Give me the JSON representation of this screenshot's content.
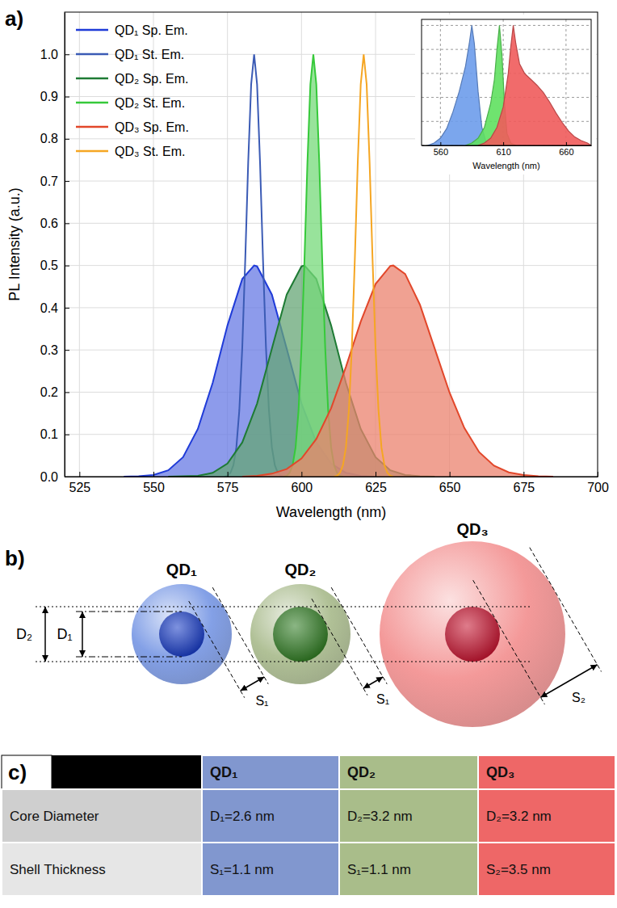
{
  "chart_data": [
    {
      "type": "line",
      "panel_label": "a)",
      "xlabel": "Wavelength (nm)",
      "ylabel": "PL Intensity (a.u.)",
      "xlim": [
        520,
        700
      ],
      "xticks": [
        525,
        550,
        575,
        600,
        625,
        650,
        675,
        700
      ],
      "ylim": [
        0,
        1.1
      ],
      "yticks": [
        {
          "value": 0,
          "label": "0.0"
        },
        {
          "value": 0.1,
          "label": "0.1"
        },
        {
          "value": 0.2,
          "label": "0.2"
        },
        {
          "value": 0.3,
          "label": "0.3"
        },
        {
          "value": 0.4,
          "label": "0.4"
        },
        {
          "value": 0.5,
          "label": "0.5"
        },
        {
          "value": 0.6,
          "label": "0.6"
        },
        {
          "value": 0.7,
          "label": "0.7"
        },
        {
          "value": 0.8,
          "label": "0.8"
        },
        {
          "value": 0.9,
          "label": "0.9"
        },
        {
          "value": 1,
          "label": "1.0"
        }
      ],
      "grid": true,
      "legend": "upper left",
      "series": [
        {
          "name": "QD₁ Sp. Em.",
          "color": "#1f3bd8",
          "type": "area",
          "x": [
            540,
            545,
            550,
            555,
            560,
            565,
            570,
            575,
            580,
            584,
            585,
            590,
            595,
            600,
            605,
            610,
            615,
            620,
            625
          ],
          "values": [
            0,
            0.001,
            0.004,
            0.015,
            0.046,
            0.113,
            0.222,
            0.358,
            0.468,
            0.5,
            0.498,
            0.431,
            0.303,
            0.173,
            0.081,
            0.031,
            0.009,
            0.002,
            0
          ]
        },
        {
          "name": "QD₁ St. Em.",
          "color": "#3b5bb5",
          "type": "line",
          "x": [
            574,
            575,
            576,
            577,
            578,
            579,
            580,
            581,
            582,
            583,
            584,
            585,
            586,
            587,
            588,
            589,
            590,
            591,
            592,
            593,
            594
          ],
          "values": [
            0,
            0.002,
            0.009,
            0.027,
            0.069,
            0.157,
            0.306,
            0.513,
            0.744,
            0.929,
            1,
            0.929,
            0.744,
            0.513,
            0.306,
            0.157,
            0.069,
            0.027,
            0.009,
            0.002,
            0
          ]
        },
        {
          "name": "QD₂ Sp. Em.",
          "color": "#1e7b34",
          "type": "area",
          "x": [
            555,
            560,
            565,
            570,
            575,
            580,
            585,
            590,
            595,
            600,
            601,
            605,
            610,
            615,
            620,
            625,
            630,
            635,
            640,
            645
          ],
          "values": [
            0,
            0.001,
            0.002,
            0.009,
            0.031,
            0.081,
            0.173,
            0.303,
            0.431,
            0.498,
            0.5,
            0.468,
            0.358,
            0.222,
            0.113,
            0.046,
            0.015,
            0.004,
            0.001,
            0
          ]
        },
        {
          "name": "QD₂ St. Em.",
          "color": "#36c93a",
          "type": "area",
          "x": [
            594,
            595,
            596,
            597,
            598,
            599,
            600,
            601,
            602,
            603,
            604,
            605,
            606,
            607,
            608,
            609,
            610,
            611,
            612,
            613,
            614
          ],
          "values": [
            0,
            0.002,
            0.009,
            0.027,
            0.069,
            0.157,
            0.306,
            0.513,
            0.744,
            0.929,
            1,
            0.929,
            0.744,
            0.513,
            0.306,
            0.157,
            0.069,
            0.027,
            0.009,
            0.002,
            0
          ]
        },
        {
          "name": "QD₃ Sp. Em.",
          "color": "#e2472a",
          "type": "area",
          "x": [
            580,
            585,
            590,
            595,
            600,
            605,
            610,
            615,
            620,
            625,
            630,
            631,
            635,
            640,
            645,
            650,
            655,
            660,
            665,
            670,
            675,
            680,
            685
          ],
          "values": [
            0,
            0.002,
            0.007,
            0.018,
            0.043,
            0.089,
            0.162,
            0.26,
            0.367,
            0.456,
            0.499,
            0.5,
            0.48,
            0.407,
            0.303,
            0.199,
            0.115,
            0.058,
            0.026,
            0.01,
            0.004,
            0.001,
            0
          ]
        },
        {
          "name": "QD₃ St. Em.",
          "color": "#f5a623",
          "type": "line",
          "x": [
            611,
            612,
            613,
            614,
            615,
            616,
            617,
            618,
            619,
            620,
            621,
            622,
            623,
            624,
            625,
            626,
            627,
            628,
            629,
            630,
            631
          ],
          "values": [
            0,
            0.002,
            0.009,
            0.027,
            0.069,
            0.157,
            0.306,
            0.513,
            0.744,
            0.929,
            1,
            0.929,
            0.744,
            0.513,
            0.306,
            0.157,
            0.069,
            0.027,
            0.009,
            0.002,
            0
          ]
        }
      ]
    },
    {
      "type": "line",
      "xlabel": "Wavelength (nm)",
      "xlim": [
        545,
        680
      ],
      "xticks": [
        560,
        610,
        660
      ],
      "ylim": [
        0,
        1.05
      ],
      "yticks": [
        0,
        0.2,
        0.4,
        0.6,
        0.8,
        1
      ],
      "grid": true,
      "tick_labels": "x",
      "series": [
        {
          "color": "#6d9ceb",
          "type": "area",
          "x": [
            550,
            555,
            560,
            565,
            570,
            575,
            580,
            583,
            585,
            587,
            590,
            593,
            596,
            600
          ],
          "values": [
            0,
            0.02,
            0.06,
            0.14,
            0.28,
            0.45,
            0.66,
            0.85,
            1,
            0.85,
            0.45,
            0.15,
            0.04,
            0
          ]
        },
        {
          "color": "#5fe05f",
          "type": "area",
          "x": [
            580,
            585,
            590,
            595,
            600,
            603,
            605,
            607,
            609,
            611,
            613,
            616,
            620
          ],
          "values": [
            0,
            0.02,
            0.06,
            0.15,
            0.35,
            0.55,
            0.8,
            1,
            0.75,
            0.35,
            0.1,
            0.02,
            0
          ]
        },
        {
          "color": "#ef5b5b",
          "type": "area",
          "x": [
            590,
            595,
            600,
            605,
            610,
            614,
            616,
            618,
            620,
            623,
            627,
            632,
            637,
            642,
            647,
            652,
            657,
            662,
            667,
            672,
            677,
            680
          ],
          "values": [
            0,
            0.02,
            0.06,
            0.15,
            0.32,
            0.6,
            0.82,
            1,
            0.85,
            0.68,
            0.6,
            0.55,
            0.5,
            0.44,
            0.36,
            0.27,
            0.19,
            0.12,
            0.07,
            0.04,
            0.02,
            0
          ]
        }
      ]
    }
  ],
  "diagram": {
    "panel_label": "b)",
    "dimension_labels": {
      "outer": "D₂",
      "inner": "D₁"
    },
    "spheres": [
      {
        "label": "QD₁",
        "shell": "S₁"
      },
      {
        "label": "QD₂",
        "shell": "S₁"
      },
      {
        "label": "QD₃",
        "shell": "S₂"
      }
    ]
  },
  "table": {
    "panel_label": "c)",
    "header": [
      "QD₁",
      "QD₂",
      "QD₃"
    ],
    "rows": [
      [
        "Core Diameter",
        "D₁=2.6 nm",
        "D₂=3.2 nm",
        "D₂=3.2 nm"
      ],
      [
        "Shell Thickness",
        "S₁=1.1 nm",
        "S₁=1.1 nm",
        "S₂=3.5 nm"
      ]
    ]
  }
}
